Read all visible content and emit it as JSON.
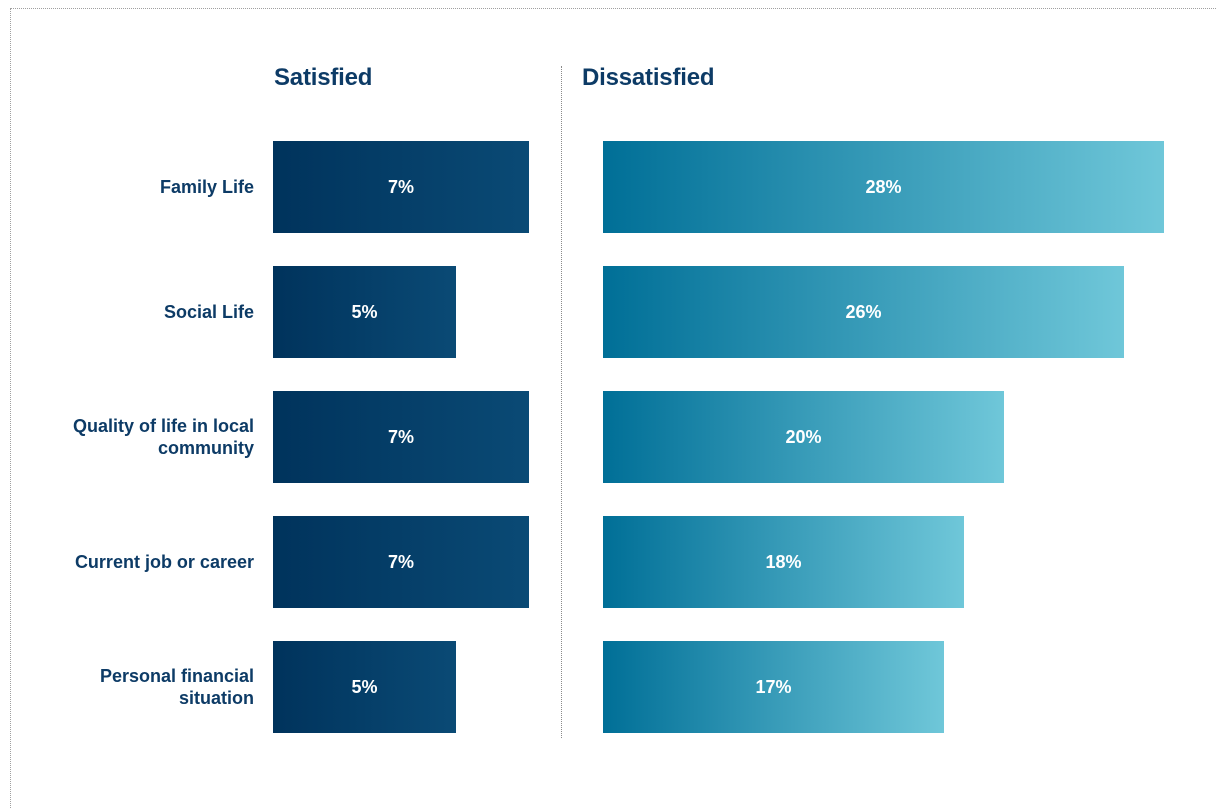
{
  "chart_data": {
    "type": "bar",
    "orientation": "horizontal",
    "categories": [
      "Family Life",
      "Social Life",
      "Quality of life in local community",
      "Current job or career",
      "Personal financial situation"
    ],
    "panels": [
      {
        "title": "Satisfied",
        "values": [
          7,
          5,
          7,
          7,
          5
        ],
        "labels": [
          "7%",
          "5%",
          "7%",
          "7%",
          "5%"
        ],
        "color": "#00335c"
      },
      {
        "title": "Dissatisfied",
        "values": [
          28,
          26,
          20,
          18,
          17
        ],
        "labels": [
          "28%",
          "26%",
          "20%",
          "18%",
          "17%"
        ],
        "color": "#006f97"
      }
    ],
    "legend": "none",
    "grid": false
  }
}
